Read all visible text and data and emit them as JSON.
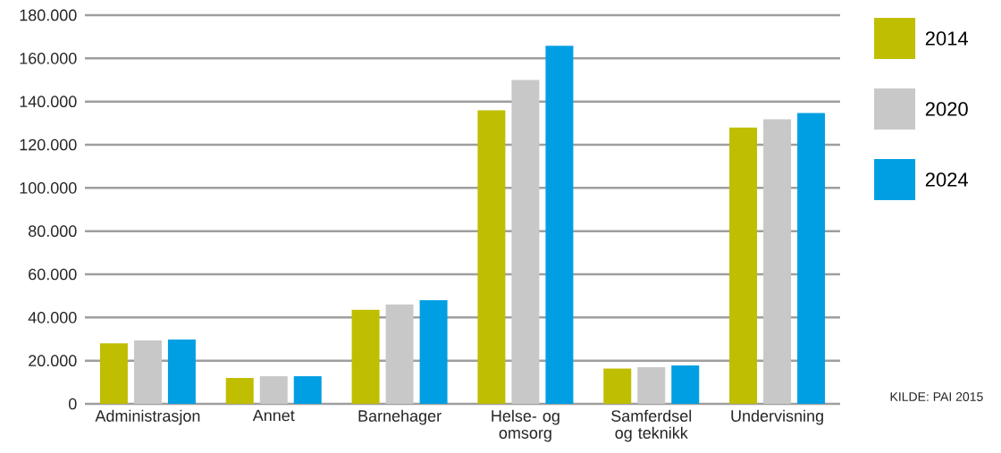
{
  "chart_data": {
    "type": "bar",
    "categories": [
      "Administrasjon",
      "Annet",
      "Barnehager",
      "Helse- og omsorg",
      "Samferdsel og teknikk",
      "Undervisning"
    ],
    "series": [
      {
        "name": "2014",
        "color": "#bfbe00",
        "values": [
          28000,
          12000,
          43500,
          136000,
          16300,
          128000
        ]
      },
      {
        "name": "2020",
        "color": "#c8c8c8",
        "values": [
          29400,
          12800,
          46000,
          150000,
          17000,
          131800
        ]
      },
      {
        "name": "2024",
        "color": "#009fe3",
        "values": [
          29800,
          12800,
          48000,
          165800,
          17800,
          134700
        ]
      }
    ],
    "ylim": [
      0,
      180000
    ],
    "yticks": [
      {
        "value": 0,
        "label": "0"
      },
      {
        "value": 20000,
        "label": "20.000"
      },
      {
        "value": 40000,
        "label": "40.000"
      },
      {
        "value": 60000,
        "label": "60.000"
      },
      {
        "value": 80000,
        "label": "80.000"
      },
      {
        "value": 100000,
        "label": "100.000"
      },
      {
        "value": 120000,
        "label": "120.000"
      },
      {
        "value": 140000,
        "label": "140.000"
      },
      {
        "value": 160000,
        "label": "160.000"
      },
      {
        "value": 180000,
        "label": "180.000"
      }
    ],
    "grid": "y",
    "legend": "right",
    "annotations": [
      "KILDE: PAI 2015"
    ]
  }
}
